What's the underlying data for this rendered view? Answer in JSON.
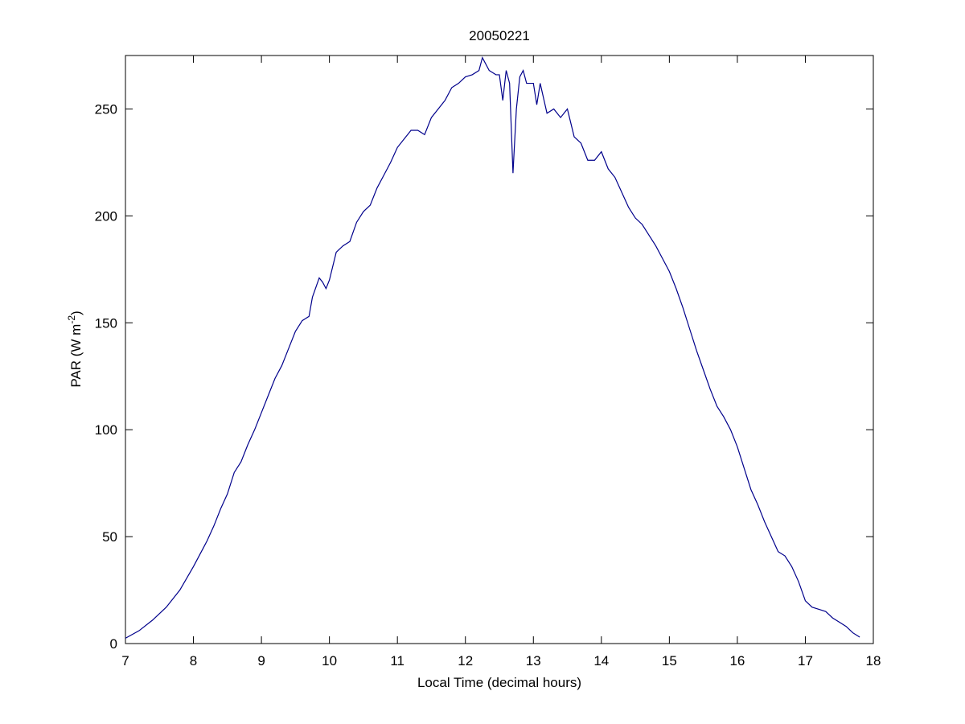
{
  "chart_data": {
    "type": "line",
    "title": "20050221",
    "xlabel": "Local Time (decimal hours)",
    "ylabel": [
      "PAR (W m",
      "-2",
      ")"
    ],
    "xlim": [
      7,
      18
    ],
    "ylim": [
      0,
      275
    ],
    "xticks": [
      7,
      8,
      9,
      10,
      11,
      12,
      13,
      14,
      15,
      16,
      17,
      18
    ],
    "yticks": [
      0,
      50,
      100,
      150,
      200,
      250
    ],
    "grid": false,
    "series": [
      {
        "color": "#00008b",
        "x": [
          7.0,
          7.2,
          7.4,
          7.6,
          7.8,
          8.0,
          8.2,
          8.3,
          8.4,
          8.5,
          8.6,
          8.7,
          8.8,
          8.9,
          9.0,
          9.1,
          9.2,
          9.3,
          9.4,
          9.5,
          9.6,
          9.7,
          9.75,
          9.85,
          9.9,
          9.95,
          10.0,
          10.1,
          10.2,
          10.3,
          10.4,
          10.5,
          10.6,
          10.7,
          10.8,
          10.9,
          11.0,
          11.1,
          11.2,
          11.3,
          11.4,
          11.5,
          11.6,
          11.7,
          11.8,
          11.9,
          12.0,
          12.1,
          12.2,
          12.25,
          12.35,
          12.45,
          12.5,
          12.55,
          12.6,
          12.65,
          12.7,
          12.75,
          12.8,
          12.85,
          12.9,
          13.0,
          13.05,
          13.1,
          13.2,
          13.3,
          13.4,
          13.5,
          13.6,
          13.7,
          13.8,
          13.9,
          14.0,
          14.1,
          14.2,
          14.3,
          14.4,
          14.5,
          14.6,
          14.7,
          14.8,
          14.9,
          15.0,
          15.1,
          15.2,
          15.3,
          15.4,
          15.5,
          15.6,
          15.7,
          15.8,
          15.9,
          16.0,
          16.1,
          16.2,
          16.3,
          16.4,
          16.5,
          16.6,
          16.7,
          16.8,
          16.9,
          17.0,
          17.1,
          17.2,
          17.3,
          17.4,
          17.5,
          17.6,
          17.7,
          17.8
        ],
        "values": [
          2.5,
          6,
          11,
          17,
          25,
          36,
          48,
          55,
          63,
          70,
          80,
          85,
          93,
          100,
          108,
          116,
          124,
          130,
          138,
          146,
          151,
          153,
          162,
          171,
          169,
          166,
          170,
          183,
          186,
          188,
          197,
          202,
          205,
          213,
          219,
          225,
          232,
          236,
          240,
          240,
          238,
          246,
          250,
          254,
          260,
          262,
          265,
          266,
          268,
          274,
          268,
          266,
          266,
          254,
          268,
          262,
          220,
          250,
          265,
          268,
          262,
          262,
          252,
          262,
          248,
          250,
          246,
          250,
          237,
          234,
          226,
          226,
          230,
          222,
          218,
          211,
          204,
          199,
          196,
          191,
          186,
          180,
          174,
          166,
          157,
          147,
          137,
          128,
          119,
          111,
          106,
          100,
          92,
          82,
          72,
          65,
          57,
          50,
          43,
          41,
          36,
          29,
          20,
          17,
          16,
          15,
          12,
          10,
          8,
          5,
          3
        ]
      }
    ]
  }
}
